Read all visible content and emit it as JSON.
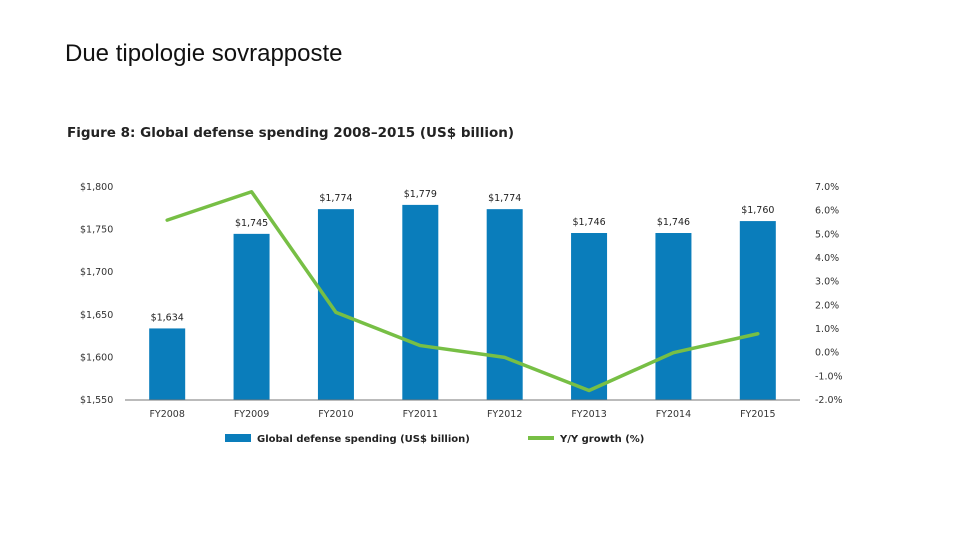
{
  "slide": {
    "title": "Due tipologie sovrapposte"
  },
  "colors": {
    "bars": "#0a7dbb",
    "line": "#77bf45",
    "axis": "#777777"
  },
  "chart_data": {
    "type": "bar+line",
    "title": "Figure 8: Global defense spending 2008–2015 (US$ billion)",
    "categories": [
      "FY2008",
      "FY2009",
      "FY2010",
      "FY2011",
      "FY2012",
      "FY2013",
      "FY2014",
      "FY2015"
    ],
    "series": [
      {
        "name": "Global defense spending (US$ billion)",
        "type": "bar",
        "axis": "left",
        "values": [
          1634,
          1745,
          1774,
          1779,
          1774,
          1746,
          1746,
          1760
        ],
        "labels": [
          "$1,634",
          "$1,745",
          "$1,774",
          "$1,779",
          "$1,774",
          "$1,746",
          "$1,746",
          "$1,760"
        ]
      },
      {
        "name": "Y/Y growth (%)",
        "type": "line",
        "axis": "right",
        "values": [
          5.6,
          6.8,
          1.7,
          0.3,
          -0.2,
          -1.6,
          0.0,
          0.8
        ]
      }
    ],
    "left_axis": {
      "ylim": [
        1550,
        1800
      ],
      "ticks": [
        1800,
        1750,
        1700,
        1650,
        1600,
        1550
      ],
      "tick_labels": [
        "$1,800",
        "$1,750",
        "$1,700",
        "$1,650",
        "$1,600",
        "$1,550"
      ]
    },
    "right_axis": {
      "ylim": [
        -2,
        7
      ],
      "ticks": [
        7,
        6,
        5,
        4,
        3,
        2,
        1,
        0,
        -1,
        -2
      ],
      "tick_labels": [
        "7.0%",
        "6.0%",
        "5.0%",
        "4.0%",
        "3.0%",
        "2.0%",
        "1.0%",
        "0.0%",
        "-1.0%",
        "-2.0%"
      ]
    },
    "legend": {
      "position": "bottom",
      "items": [
        "Global defense spending (US$ billion)",
        "Y/Y growth (%)"
      ]
    }
  }
}
